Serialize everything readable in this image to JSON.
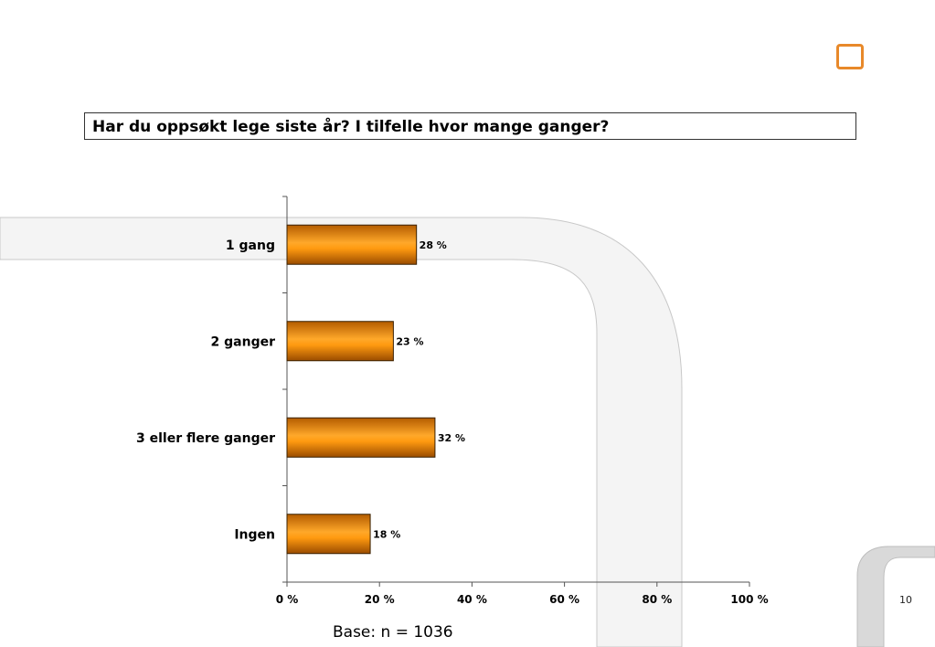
{
  "title": "Har du oppsøkt lege siste år? I tilfelle hvor mange ganger?",
  "base_note": "Base: n = 1036",
  "page_number": "10",
  "colors": {
    "bar_light": "#ffb23a",
    "bar_dark": "#c86800",
    "bar_stroke": "#3a2000",
    "logo": "#e8892a",
    "decor": "#f4f4f4"
  },
  "chart_data": {
    "type": "bar",
    "orientation": "horizontal",
    "categories": [
      "1 gang",
      "2 ganger",
      "3 eller flere ganger",
      "Ingen"
    ],
    "values": [
      28,
      23,
      32,
      18
    ],
    "value_labels": [
      "28 %",
      "23 %",
      "32 %",
      "18 %"
    ],
    "xlim": [
      0,
      100
    ],
    "x_ticks": [
      0,
      20,
      40,
      60,
      80,
      100
    ],
    "x_tick_labels": [
      "0 %",
      "20 %",
      "40 %",
      "60 %",
      "80 %",
      "100 %"
    ],
    "grid": false,
    "legend": "none"
  }
}
